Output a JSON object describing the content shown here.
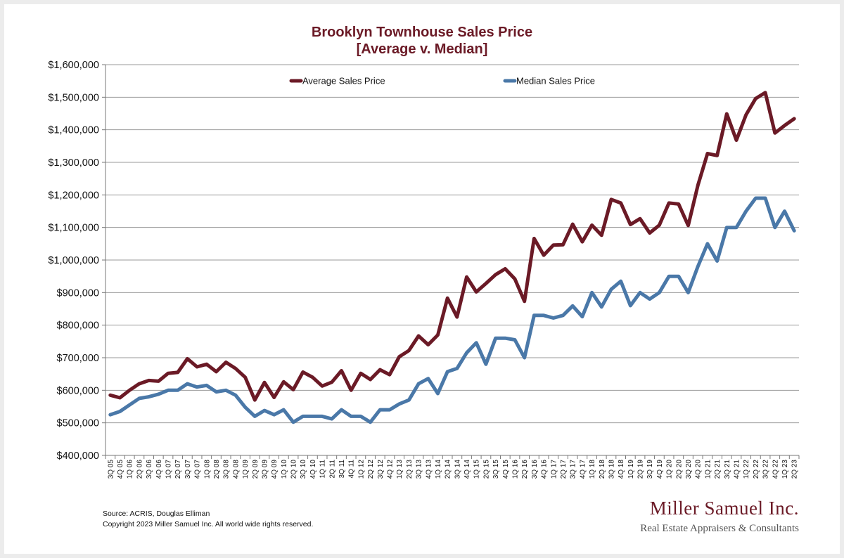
{
  "chart_data": {
    "type": "line",
    "title": "Brooklyn Townhouse Sales Price",
    "subtitle": "[Average v. Median]",
    "xlabel": "",
    "ylabel": "",
    "ylim": [
      400000,
      1600000
    ],
    "yticks": [
      400000,
      500000,
      600000,
      700000,
      800000,
      900000,
      1000000,
      1100000,
      1200000,
      1300000,
      1400000,
      1500000,
      1600000
    ],
    "ytick_labels": [
      "$400,000",
      "$500,000",
      "$600,000",
      "$700,000",
      "$800,000",
      "$900,000",
      "$1,000,000",
      "$1,100,000",
      "$1,200,000",
      "$1,300,000",
      "$1,400,000",
      "$1,500,000",
      "$1,600,000"
    ],
    "grid": "horizontal",
    "legend_position": "top",
    "x": [
      "3Q 05",
      "4Q 05",
      "1Q 06",
      "2Q 06",
      "3Q 06",
      "4Q 06",
      "1Q 07",
      "2Q 07",
      "3Q 07",
      "4Q 07",
      "1Q 08",
      "2Q 08",
      "3Q 08",
      "4Q 08",
      "1Q 09",
      "2Q 09",
      "3Q 09",
      "4Q 09",
      "1Q 10",
      "2Q 10",
      "3Q 10",
      "4Q 10",
      "1Q 11",
      "2Q 11",
      "3Q 11",
      "4Q 11",
      "1Q 12",
      "2Q 12",
      "3Q 12",
      "4Q 12",
      "1Q 13",
      "2Q 13",
      "3Q 13",
      "4Q 13",
      "1Q 14",
      "2Q 14",
      "3Q 14",
      "4Q 14",
      "1Q 15",
      "2Q 15",
      "3Q 15",
      "4Q 15",
      "1Q 16",
      "2Q 16",
      "3Q 16",
      "4Q 16",
      "1Q 17",
      "2Q 17",
      "3Q 17",
      "4Q 17",
      "1Q 18",
      "2Q 18",
      "3Q 18",
      "4Q 18",
      "1Q 19",
      "2Q 19",
      "3Q 19",
      "4Q 19",
      "1Q 20",
      "2Q 20",
      "3Q 20",
      "4Q 20",
      "1Q 21",
      "2Q 21",
      "3Q 21",
      "4Q 21",
      "1Q 22",
      "2Q 22",
      "3Q 22",
      "4Q 22",
      "1Q 23",
      "2Q 23"
    ],
    "series": [
      {
        "name": "Average Sales Price",
        "color": "#6b1a26",
        "values": [
          585000,
          577000,
          600000,
          620000,
          630000,
          628000,
          652000,
          655000,
          697000,
          672000,
          680000,
          657000,
          686000,
          667000,
          640000,
          570000,
          624000,
          578000,
          626000,
          602000,
          656000,
          640000,
          613000,
          625000,
          660000,
          600000,
          652000,
          633000,
          663000,
          648000,
          703000,
          722000,
          767000,
          740000,
          770000,
          883000,
          825000,
          948000,
          902000,
          928000,
          955000,
          973000,
          942000,
          873000,
          1066000,
          1015000,
          1046000,
          1047000,
          1110000,
          1056000,
          1107000,
          1076000,
          1186000,
          1175000,
          1109000,
          1127000,
          1083000,
          1107000,
          1175000,
          1172000,
          1106000,
          1229000,
          1327000,
          1321000,
          1449000,
          1368000,
          1446000,
          1496000,
          1514000,
          1390000,
          1413000,
          1434000
        ]
      },
      {
        "name": "Median Sales Price",
        "color": "#4a78a8",
        "values": [
          525000,
          535000,
          555000,
          575000,
          580000,
          588000,
          600000,
          600000,
          620000,
          610000,
          615000,
          595000,
          600000,
          585000,
          548000,
          520000,
          538000,
          525000,
          540000,
          502000,
          520000,
          520000,
          520000,
          512000,
          540000,
          520000,
          520000,
          502000,
          540000,
          540000,
          558000,
          570000,
          620000,
          636000,
          590000,
          657000,
          667000,
          715000,
          746000,
          680000,
          760000,
          760000,
          755000,
          700000,
          830000,
          830000,
          822000,
          830000,
          859000,
          826000,
          900000,
          856000,
          910000,
          935000,
          860000,
          900000,
          880000,
          900000,
          950000,
          950000,
          900000,
          980000,
          1050000,
          997000,
          1100000,
          1100000,
          1150000,
          1190000,
          1190000,
          1100000,
          1150000,
          1090000
        ]
      }
    ]
  },
  "footer": {
    "source": "Source: ACRIS, Douglas Elliman",
    "copyright": "Copyright 2023 Miller Samuel Inc.  All world wide rights reserved."
  },
  "brand": {
    "name": "Miller Samuel Inc.",
    "tagline": "Real Estate Appraisers & Consultants"
  }
}
